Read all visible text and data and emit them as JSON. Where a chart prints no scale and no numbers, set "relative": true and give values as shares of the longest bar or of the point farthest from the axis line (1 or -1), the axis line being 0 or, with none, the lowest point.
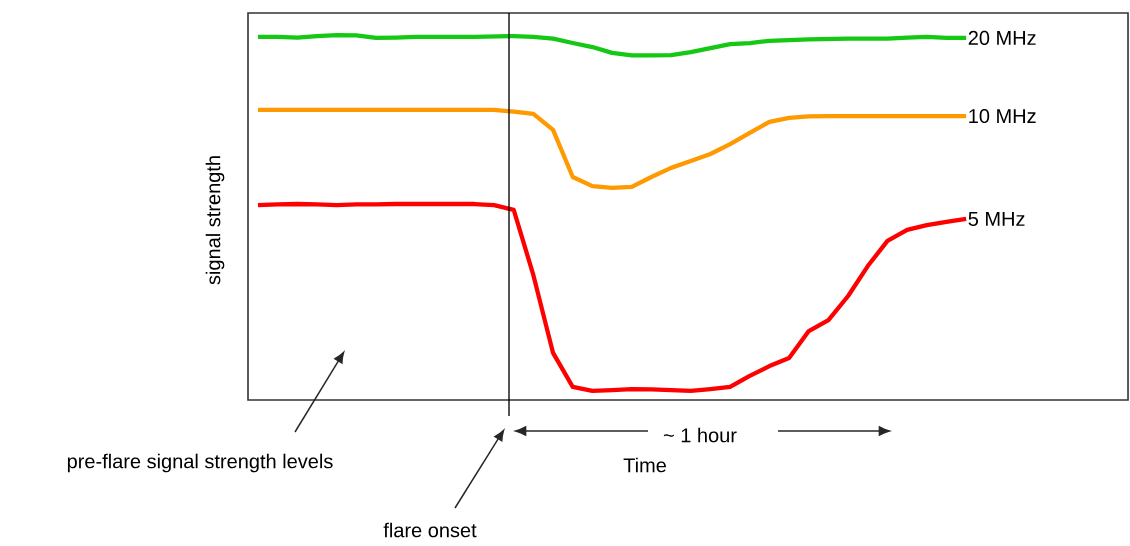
{
  "chart_data": {
    "type": "line",
    "relative": true,
    "xlabel": "Time",
    "ylabel": "signal strength",
    "marker": "none",
    "line_style": "solid",
    "categories": [
      null,
      null,
      null,
      null,
      null,
      null,
      null,
      null,
      null,
      null,
      null,
      null,
      null,
      null,
      null,
      null,
      null,
      null,
      null,
      null,
      null,
      null,
      null,
      null,
      null,
      null,
      null,
      null,
      null,
      null,
      null,
      null,
      null,
      null,
      null,
      null,
      null
    ],
    "series": [
      {
        "name": "20 MHz",
        "color": "#14c814",
        "values": [
          0.995,
          0.995,
          0.993,
          0.997,
          1,
          0.999,
          0.992,
          0.993,
          0.995,
          0.995,
          0.995,
          0.995,
          0.996,
          0.997,
          0.995,
          0.99,
          0.978,
          0.967,
          0.951,
          0.944,
          0.944,
          0.945,
          0.953,
          0.964,
          0.975,
          0.978,
          0.984,
          0.986,
          0.988,
          0.989,
          0.99,
          0.99,
          0.99,
          0.993,
          0.995,
          0.992,
          0.992
        ]
      },
      {
        "name": "10 MHz",
        "color": "#ff9900",
        "values": [
          0.795,
          0.795,
          0.795,
          0.795,
          0.795,
          0.795,
          0.795,
          0.795,
          0.795,
          0.795,
          0.795,
          0.795,
          0.795,
          0.79,
          0.784,
          0.74,
          0.611,
          0.586,
          0.581,
          0.584,
          0.611,
          0.636,
          0.655,
          0.674,
          0.701,
          0.732,
          0.762,
          0.773,
          0.777,
          0.778,
          0.778,
          0.778,
          0.778,
          0.778,
          0.778,
          0.778,
          0.778
        ]
      },
      {
        "name": "5 MHz",
        "color": "#ff0000",
        "values": [
          0.534,
          0.536,
          0.537,
          0.536,
          0.534,
          0.536,
          0.536,
          0.537,
          0.537,
          0.537,
          0.537,
          0.537,
          0.534,
          0.521,
          0.342,
          0.129,
          0.036,
          0.025,
          0.027,
          0.03,
          0.029,
          0.027,
          0.025,
          0.03,
          0.036,
          0.066,
          0.093,
          0.115,
          0.189,
          0.219,
          0.285,
          0.367,
          0.436,
          0.466,
          0.479,
          0.488,
          0.496
        ]
      }
    ],
    "annotations": [
      "pre-flare  signal strength levels",
      "flare onset",
      "~ 1 hour"
    ]
  }
}
